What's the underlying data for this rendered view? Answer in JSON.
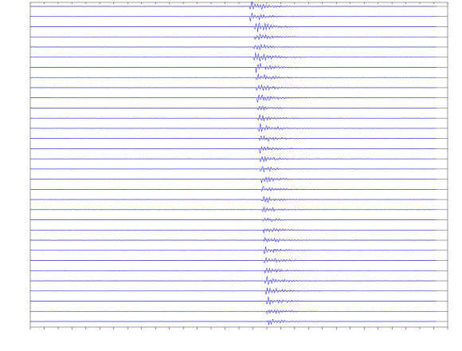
{
  "chart_data": {
    "type": "record-section",
    "color": "#1c1cff",
    "xlim": [
      0,
      100
    ],
    "xticks": [
      0,
      3.33,
      6.67,
      10,
      13.33,
      16.67,
      20,
      23.33,
      26.67,
      30,
      33.33,
      36.67,
      40,
      43.33,
      46.67,
      50,
      53.33,
      56.67,
      60,
      63.33,
      66.67,
      70,
      73.33,
      76.67,
      80,
      83.33,
      86.67,
      90,
      93.33,
      96.67,
      100
    ],
    "onsets": [
      52.5,
      52.6,
      53.6,
      53.8,
      53.4,
      53.4,
      54.0,
      54.1,
      54.2,
      54.3,
      54.4,
      54.5,
      54.6,
      54.8,
      54.9,
      55.0,
      55.1,
      55.2,
      55.3,
      55.4,
      55.5,
      55.6,
      55.7,
      55.8,
      55.9,
      56.0,
      56.1,
      56.2,
      56.3,
      56.5,
      56.6,
      56.9
    ],
    "amplitudes": [
      1.0,
      0.9,
      1.2,
      0.8,
      0.9,
      1.2,
      1.0,
      0.9,
      0.8,
      0.9,
      0.6,
      0.8,
      1.1,
      0.9,
      0.8,
      0.7,
      0.7,
      0.8,
      0.7,
      0.8,
      0.7,
      0.6,
      0.7,
      0.8,
      0.7,
      0.8,
      0.8,
      0.9,
      0.9,
      0.9,
      0.8,
      0.7
    ]
  }
}
